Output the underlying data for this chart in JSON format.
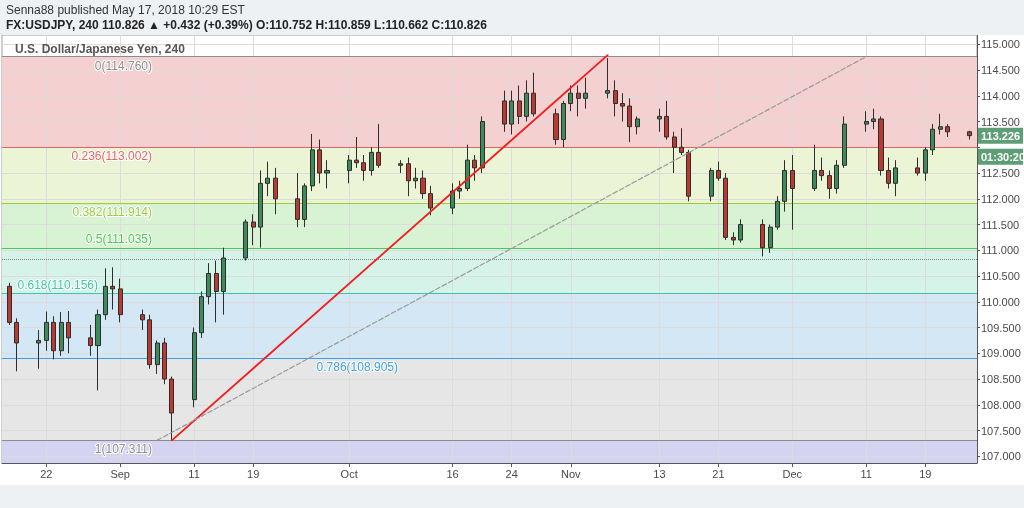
{
  "chart_data": {
    "type": "candlestick",
    "title": "U.S. Dollar/Japanese Yen, 240",
    "annotations": [
      "Senna88 published May 17, 2018 10:29 EST",
      "FX:USDJPY, 240 110.826 ▲ +0.432 (+0.39%) O:110.752 H:110.859 L:110.662 C:110.826",
      "113.226",
      "01:30:20"
    ],
    "x": [
      "--08-17",
      "--08-18",
      "--08-21",
      "--08-22",
      "--08-23",
      "--08-24",
      "--08-25",
      "--08-28",
      "--08-29",
      "--08-30",
      "--08-31",
      "--09-01",
      "--09-04",
      "--09-05",
      "--09-06",
      "--09-07",
      "--09-08",
      "--09-11",
      "--09-12",
      "--09-13",
      "--09-14",
      "--09-15",
      "--09-18",
      "--09-19",
      "--09-20",
      "--09-21",
      "--09-22",
      "--09-25",
      "--09-26",
      "--09-27",
      "--09-28",
      "--09-29",
      "--10-02",
      "--10-03",
      "--10-04",
      "--10-05",
      "--10-06",
      "--10-09",
      "--10-10",
      "--10-11",
      "--10-12",
      "--10-13",
      "--10-16",
      "--10-17",
      "--10-18",
      "--10-19",
      "--10-20",
      "--10-23",
      "--10-24",
      "--10-25",
      "--10-26",
      "--10-27",
      "--10-30",
      "--10-31",
      "--11-01",
      "--11-02",
      "--11-03",
      "--11-06",
      "--11-07",
      "--11-08",
      "--11-09",
      "--11-10",
      "--11-13",
      "--11-14",
      "--11-15",
      "--11-16",
      "--11-17",
      "--11-20",
      "--11-21",
      "--11-22",
      "--11-23",
      "--11-24",
      "--11-27",
      "--11-28",
      "--11-29",
      "--11-30",
      "--12-01",
      "--12-04",
      "--12-05",
      "--12-06",
      "--12-07",
      "--12-08",
      "--12-11",
      "--12-12",
      "--12-13",
      "--12-14",
      "--12-15",
      "--12-18",
      "--12-19",
      "--12-20",
      "--12-21",
      "--12-22",
      "--12-25"
    ],
    "ohlc": [
      [
        110.3,
        110.37,
        109.55,
        109.6
      ],
      [
        109.6,
        109.68,
        108.65,
        109.2
      ],
      [
        109.2,
        109.45,
        108.7,
        109.25
      ],
      [
        109.25,
        109.81,
        109.05,
        109.6
      ],
      [
        109.6,
        109.72,
        108.88,
        109.05
      ],
      [
        109.05,
        109.8,
        108.95,
        109.6
      ],
      [
        109.6,
        109.82,
        109.0,
        109.3
      ],
      [
        109.3,
        109.55,
        108.95,
        109.15
      ],
      [
        109.15,
        109.85,
        108.28,
        109.75
      ],
      [
        109.75,
        110.65,
        109.65,
        110.3
      ],
      [
        110.3,
        110.67,
        109.85,
        110.25
      ],
      [
        110.25,
        110.45,
        109.6,
        109.75
      ],
      [
        109.75,
        109.85,
        109.45,
        109.65
      ],
      [
        109.65,
        109.75,
        108.7,
        108.78
      ],
      [
        108.78,
        109.25,
        108.6,
        109.2
      ],
      [
        109.2,
        109.3,
        108.4,
        108.5
      ],
      [
        108.5,
        108.55,
        107.32,
        107.84
      ],
      [
        108.1,
        109.5,
        107.95,
        109.4
      ],
      [
        109.4,
        110.2,
        109.3,
        110.1
      ],
      [
        110.1,
        110.75,
        109.95,
        110.55
      ],
      [
        110.55,
        110.8,
        109.6,
        110.2
      ],
      [
        110.2,
        111.05,
        109.75,
        110.85
      ],
      [
        110.85,
        111.6,
        110.8,
        111.55
      ],
      [
        111.55,
        111.7,
        111.1,
        111.45
      ],
      [
        111.45,
        112.55,
        111.05,
        112.3
      ],
      [
        112.3,
        112.72,
        112.05,
        112.4
      ],
      [
        112.4,
        112.6,
        111.7,
        112.0
      ],
      [
        112.0,
        112.5,
        111.45,
        111.6
      ],
      [
        111.6,
        112.3,
        111.45,
        112.25
      ],
      [
        112.25,
        113.26,
        112.15,
        112.95
      ],
      [
        112.95,
        113.15,
        112.3,
        112.5
      ],
      [
        112.5,
        112.75,
        112.2,
        112.55
      ],
      [
        112.55,
        112.85,
        112.3,
        112.75
      ],
      [
        112.75,
        113.2,
        112.6,
        112.7
      ],
      [
        112.7,
        112.85,
        112.35,
        112.55
      ],
      [
        112.55,
        113.0,
        112.45,
        112.9
      ],
      [
        112.9,
        113.45,
        112.6,
        112.65
      ],
      [
        112.65,
        112.75,
        112.5,
        112.68
      ],
      [
        112.68,
        112.8,
        112.05,
        112.35
      ],
      [
        112.35,
        112.6,
        112.2,
        112.4
      ],
      [
        112.4,
        112.55,
        112.0,
        112.1
      ],
      [
        112.1,
        112.25,
        111.68,
        111.82
      ],
      [
        111.82,
        112.3,
        111.7,
        112.15
      ],
      [
        112.15,
        112.35,
        112.0,
        112.2
      ],
      [
        112.2,
        113.05,
        112.15,
        112.75
      ],
      [
        112.75,
        112.85,
        112.35,
        112.6
      ],
      [
        112.6,
        113.6,
        112.5,
        113.5
      ],
      [
        113.9,
        114.1,
        113.3,
        113.45
      ],
      [
        113.45,
        114.1,
        113.25,
        113.9
      ],
      [
        113.9,
        114.2,
        113.45,
        113.6
      ],
      [
        113.6,
        114.3,
        113.5,
        114.05
      ],
      [
        114.05,
        114.45,
        113.6,
        113.65
      ],
      [
        113.65,
        113.75,
        113.05,
        113.15
      ],
      [
        113.15,
        113.9,
        113.0,
        113.85
      ],
      [
        113.85,
        114.2,
        113.7,
        114.05
      ],
      [
        114.05,
        114.2,
        113.6,
        113.95
      ],
      [
        113.95,
        114.35,
        113.75,
        114.05
      ],
      [
        114.05,
        114.73,
        113.95,
        114.1
      ],
      [
        114.1,
        114.3,
        113.6,
        113.85
      ],
      [
        113.85,
        114.05,
        113.5,
        113.8
      ],
      [
        113.8,
        113.95,
        113.1,
        113.4
      ],
      [
        113.4,
        113.6,
        113.25,
        113.55
      ],
      [
        113.55,
        113.75,
        113.3,
        113.6
      ],
      [
        113.6,
        113.9,
        113.15,
        113.2
      ],
      [
        113.2,
        113.3,
        112.5,
        113.0
      ],
      [
        113.0,
        113.37,
        112.85,
        112.9
      ],
      [
        112.9,
        112.95,
        111.95,
        112.05
      ],
      [
        112.05,
        112.6,
        111.95,
        112.55
      ],
      [
        112.55,
        112.72,
        112.35,
        112.4
      ],
      [
        112.4,
        112.5,
        111.2,
        111.25
      ],
      [
        111.25,
        111.35,
        111.1,
        111.2
      ],
      [
        111.2,
        111.6,
        111.15,
        111.5
      ],
      [
        111.5,
        111.6,
        110.88,
        111.05
      ],
      [
        111.05,
        111.5,
        110.95,
        111.45
      ],
      [
        111.45,
        112.05,
        111.4,
        111.95
      ],
      [
        111.95,
        112.75,
        111.75,
        112.55
      ],
      [
        112.55,
        112.85,
        111.4,
        112.2
      ],
      [
        112.2,
        113.05,
        112.15,
        112.55
      ],
      [
        112.55,
        112.8,
        112.35,
        112.45
      ],
      [
        112.45,
        112.55,
        112.0,
        112.2
      ],
      [
        112.2,
        112.75,
        112.1,
        112.65
      ],
      [
        112.65,
        113.6,
        112.6,
        113.45
      ],
      [
        113.45,
        113.7,
        113.3,
        113.5
      ],
      [
        113.5,
        113.75,
        113.35,
        113.55
      ],
      [
        113.55,
        113.6,
        112.45,
        112.55
      ],
      [
        112.55,
        112.8,
        112.2,
        112.3
      ],
      [
        112.3,
        112.75,
        112.05,
        112.6
      ],
      [
        112.6,
        112.8,
        112.45,
        112.5
      ],
      [
        112.5,
        113.0,
        112.35,
        112.95
      ],
      [
        112.95,
        113.45,
        112.85,
        113.35
      ],
      [
        113.35,
        113.65,
        113.25,
        113.4
      ],
      [
        113.4,
        113.45,
        113.2,
        113.3
      ],
      [
        113.3,
        113.32,
        113.15,
        113.226
      ]
    ],
    "colors": [
      "#b83a30",
      "#b83a30",
      "#3d8b5a",
      "#3d8b5a",
      "#b83a30",
      "#3d8b5a",
      "#b83a30",
      "#b83a30",
      "#3d8b5a",
      "#3d8b5a",
      "#b83a30",
      "#b83a30",
      "#b83a30",
      "#b83a30",
      "#3d8b5a",
      "#b83a30",
      "#b83a30",
      "#3d8b5a",
      "#3d8b5a",
      "#3d8b5a",
      "#b83a30",
      "#3d8b5a",
      "#3d8b5a",
      "#b83a30",
      "#3d8b5a",
      "#3d8b5a",
      "#b83a30",
      "#b83a30",
      "#3d8b5a",
      "#3d8b5a",
      "#b83a30",
      "#3d8b5a",
      "#3d8b5a",
      "#b83a30",
      "#b83a30",
      "#3d8b5a",
      "#b83a30",
      "#3d8b5a",
      "#b83a30",
      "#3d8b5a",
      "#b83a30",
      "#b83a30",
      "#3d8b5a",
      "#3d8b5a",
      "#3d8b5a",
      "#b83a30",
      "#3d8b5a",
      "#b83a30",
      "#3d8b5a",
      "#b83a30",
      "#3d8b5a",
      "#b83a30",
      "#b83a30",
      "#3d8b5a",
      "#3d8b5a",
      "#b83a30",
      "#3d8b5a",
      "#3d8b5a",
      "#b83a30",
      "#b83a30",
      "#b83a30",
      "#3d8b5a",
      "#3d8b5a",
      "#b83a30",
      "#b83a30",
      "#b83a30",
      "#b83a30",
      "#3d8b5a",
      "#b83a30",
      "#b83a30",
      "#b83a30",
      "#3d8b5a",
      "#b83a30",
      "#3d8b5a",
      "#3d8b5a",
      "#3d8b5a",
      "#b83a30",
      "#3d8b5a",
      "#b83a30",
      "#b83a30",
      "#3d8b5a",
      "#3d8b5a",
      "#3d8b5a",
      "#3d8b5a",
      "#b83a30",
      "#b83a30",
      "#3d8b5a",
      "#b83a30",
      "#3d8b5a",
      "#3d8b5a",
      "#3d8b5a",
      "#b83a30",
      "#b83a30"
    ],
    "series": [
      {
        "type": "line",
        "x": [
          "--09-08",
          "--11-06"
        ],
        "values": [
          107.31,
          114.79
        ],
        "color": "#f01e1e",
        "line_style": "solid"
      },
      {
        "type": "line",
        "x": [
          "--09-06",
          "--12-11"
        ],
        "values": [
          107.31,
          114.76
        ],
        "color": "#9a9a9a",
        "line_style": "dashed"
      }
    ],
    "xlim": [
      "--08-16",
      "--12-26"
    ],
    "xticks": [
      {
        "value": "--08-22",
        "label": "22"
      },
      {
        "value": "--09-01",
        "label": "Sep"
      },
      {
        "value": "--09-11",
        "label": "11"
      },
      {
        "value": "--09-19",
        "label": "19"
      },
      {
        "value": "--10-02",
        "label": "Oct"
      },
      {
        "value": "--10-16",
        "label": "16"
      },
      {
        "value": "--10-24",
        "label": "24"
      },
      {
        "value": "--11-01",
        "label": "Nov"
      },
      {
        "value": "--11-13",
        "label": "13"
      },
      {
        "value": "--11-21",
        "label": "21"
      },
      {
        "value": "--12-01",
        "label": "Dec"
      },
      {
        "value": "--12-11",
        "label": "11"
      },
      {
        "value": "--12-19",
        "label": "19"
      }
    ],
    "ylim": [
      106.87,
      115.18
    ],
    "yticks": [
      {
        "value": 107,
        "label": "107.000"
      },
      {
        "value": 107.5,
        "label": "107.500"
      },
      {
        "value": 108,
        "label": "108.000"
      },
      {
        "value": 108.5,
        "label": "108.500"
      },
      {
        "value": 109,
        "label": "109.000"
      },
      {
        "value": 109.5,
        "label": "109.500"
      },
      {
        "value": 110,
        "label": "110.000"
      },
      {
        "value": 110.5,
        "label": "110.500"
      },
      {
        "value": 111,
        "label": "111.000"
      },
      {
        "value": 111.5,
        "label": "111.500"
      },
      {
        "value": 112,
        "label": "112.000"
      },
      {
        "value": 112.5,
        "label": "112.500"
      },
      {
        "value": 113,
        "label": null
      },
      {
        "value": 113.5,
        "label": "113.500"
      },
      {
        "value": 114,
        "label": "114.000"
      },
      {
        "value": 114.5,
        "label": "114.500"
      },
      {
        "value": 115,
        "label": "115.000"
      }
    ],
    "ref_lines": [
      {
        "axis": "y",
        "value": 114.76,
        "label": "0(114.760)",
        "color": "#8c8c8c"
      },
      {
        "axis": "y",
        "value": 113.002,
        "label": "0.236(113.002)",
        "color": "#e06666"
      },
      {
        "axis": "y",
        "value": 111.914,
        "label": "0.382(111.914)",
        "color": "#9ccc3c"
      },
      {
        "axis": "y",
        "value": 111.035,
        "label": "0.5(111.035)",
        "color": "#4cc84c"
      },
      {
        "axis": "y",
        "value": 110.156,
        "label": "0.618(110.156)",
        "color": "#3cc8a0"
      },
      {
        "axis": "y",
        "value": 108.905,
        "label": "0.786(108.905)",
        "color": "#3c9ee0"
      },
      {
        "axis": "y",
        "value": 107.311,
        "label": "1(107.311)",
        "color": "#8c8c8c"
      },
      {
        "axis": "y",
        "value": 110.826,
        "color": "#808080",
        "line_style": "dotted"
      }
    ],
    "bands": [
      {
        "axis": "y",
        "from": 113.002,
        "to": 114.76,
        "color": "#f4d0d0"
      },
      {
        "axis": "y",
        "from": 111.914,
        "to": 113.002,
        "color": "#ebf4d4"
      },
      {
        "axis": "y",
        "from": 111.035,
        "to": 111.914,
        "color": "#d8f2d4"
      },
      {
        "axis": "y",
        "from": 110.156,
        "to": 111.035,
        "color": "#d6f3ea"
      },
      {
        "axis": "y",
        "from": 108.905,
        "to": 110.156,
        "color": "#d4e7f4"
      },
      {
        "axis": "y",
        "from": 107.311,
        "to": 108.905,
        "color": "#e6e6e6"
      },
      {
        "axis": "y",
        "from": 106.87,
        "to": 107.311,
        "color": "#d4d4f2"
      }
    ],
    "grid": true,
    "marker": "none"
  }
}
